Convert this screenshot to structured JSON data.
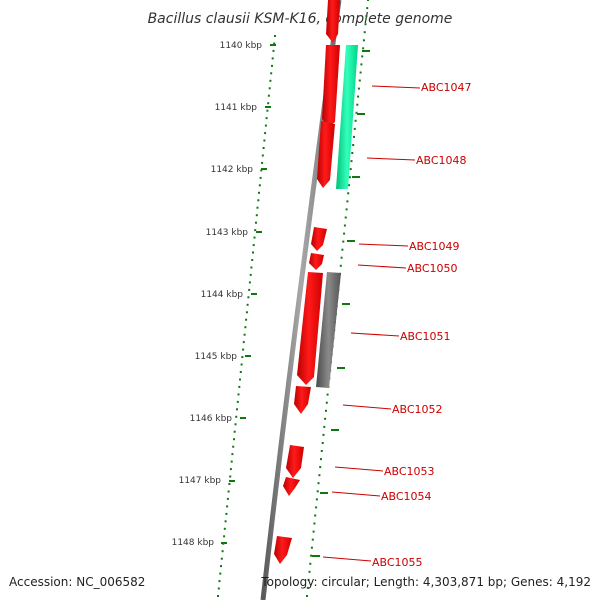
{
  "title": "Bacillus clausii KSM-K16, complete genome",
  "accession": "Accession: NC_006582",
  "summary": "Topology: circular; Length: 4,303,871 bp; Genes: 4,192",
  "colors": {
    "forward_cds": "#ff0000",
    "rna_feature": "#00ee99",
    "other_feature": "#666666",
    "backbone": "#808080",
    "tick": "#117711",
    "label": "#cc0000"
  },
  "scale_ticks": [
    {
      "label": "1140 kbp"
    },
    {
      "label": "1141 kbp"
    },
    {
      "label": "1142 kbp"
    },
    {
      "label": "1143 kbp"
    },
    {
      "label": "1144 kbp"
    },
    {
      "label": "1145 kbp"
    },
    {
      "label": "1146 kbp"
    },
    {
      "label": "1147 kbp"
    },
    {
      "label": "1148 kbp"
    }
  ],
  "gene_labels": [
    {
      "label": "ABC1047"
    },
    {
      "label": "ABC1048"
    },
    {
      "label": "ABC1049"
    },
    {
      "label": "ABC1050"
    },
    {
      "label": "ABC1051"
    },
    {
      "label": "ABC1052"
    },
    {
      "label": "ABC1053"
    },
    {
      "label": "ABC1054"
    },
    {
      "label": "ABC1055"
    }
  ]
}
